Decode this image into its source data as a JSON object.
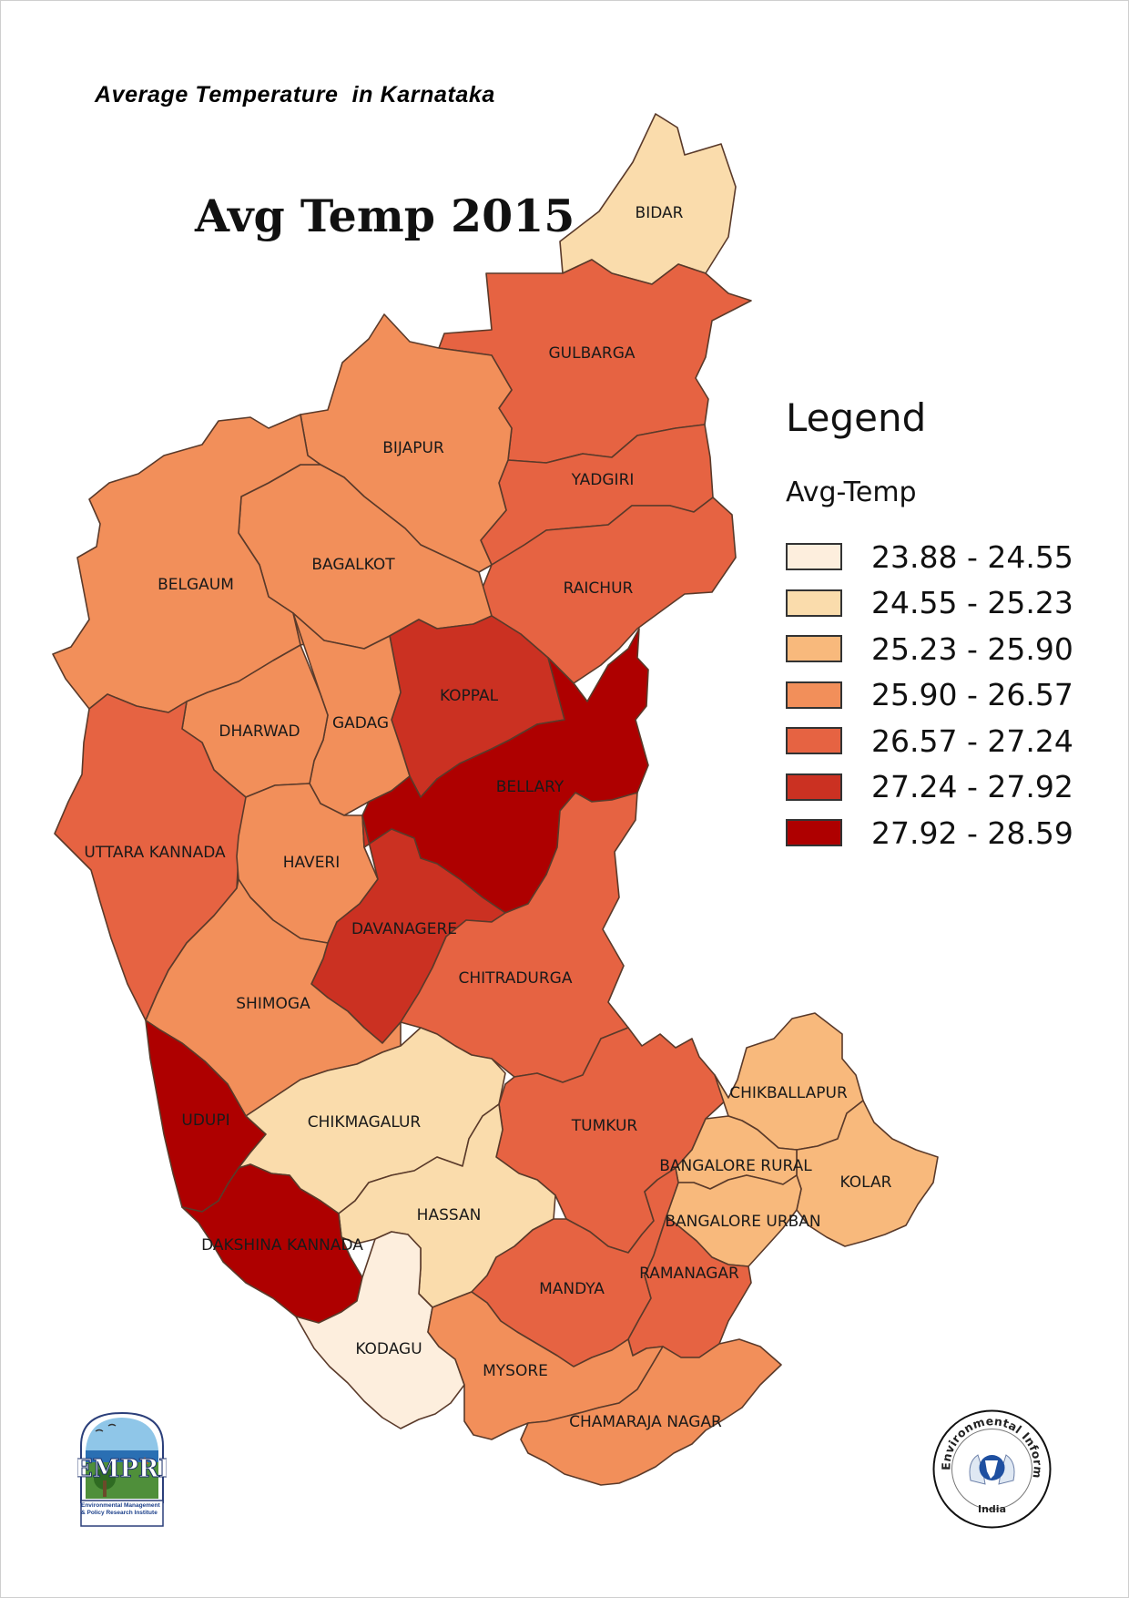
{
  "header": {
    "title": "Average Temperature  in Karnataka",
    "map_title": "Avg Temp 2015"
  },
  "legend": {
    "title": "Legend",
    "subtitle": "Avg-Temp",
    "classes": [
      {
        "label": "23.88 - 24.55",
        "color": "#fdeedd"
      },
      {
        "label": "24.55 - 25.23",
        "color": "#fadcac"
      },
      {
        "label": "25.23 - 25.90",
        "color": "#f8b97c"
      },
      {
        "label": "25.90 - 26.57",
        "color": "#f28f5a"
      },
      {
        "label": "26.57 - 27.24",
        "color": "#e66342"
      },
      {
        "label": "27.24 - 27.92",
        "color": "#cb3122"
      },
      {
        "label": "27.92 - 28.59",
        "color": "#ae0000"
      }
    ]
  },
  "districts": [
    {
      "name": "BIDAR",
      "class": 1
    },
    {
      "name": "GULBARGA",
      "class": 4
    },
    {
      "name": "YADGIRI",
      "class": 4
    },
    {
      "name": "BIJAPUR",
      "class": 3
    },
    {
      "name": "RAICHUR",
      "class": 4
    },
    {
      "name": "BAGALKOT",
      "class": 3
    },
    {
      "name": "BELGAUM",
      "class": 3
    },
    {
      "name": "KOPPAL",
      "class": 5
    },
    {
      "name": "GADAG",
      "class": 3
    },
    {
      "name": "DHARWAD",
      "class": 3
    },
    {
      "name": "BELLARY",
      "class": 6
    },
    {
      "name": "UTTARA KANNADA",
      "class": 4
    },
    {
      "name": "HAVERI",
      "class": 3
    },
    {
      "name": "DAVANAGERE",
      "class": 5
    },
    {
      "name": "CHITRADURGA",
      "class": 4
    },
    {
      "name": "SHIMOGA",
      "class": 3
    },
    {
      "name": "UDUPI",
      "class": 6
    },
    {
      "name": "CHIKMAGALUR",
      "class": 1
    },
    {
      "name": "TUMKUR",
      "class": 4
    },
    {
      "name": "CHIKBALLAPUR",
      "class": 2
    },
    {
      "name": "KOLAR",
      "class": 2
    },
    {
      "name": "BANGALORE RURAL",
      "class": 2
    },
    {
      "name": "BANGALORE URBAN",
      "class": 2
    },
    {
      "name": "HASSAN",
      "class": 1
    },
    {
      "name": "DAKSHINA KANNADA",
      "class": 6
    },
    {
      "name": "MANDYA",
      "class": 4
    },
    {
      "name": "RAMANAGAR",
      "class": 4
    },
    {
      "name": "KODAGU",
      "class": 0
    },
    {
      "name": "MYSORE",
      "class": 3
    },
    {
      "name": "CHAMARAJA NAGAR",
      "class": 3
    }
  ],
  "logos": {
    "left": {
      "text": "EMPRI",
      "caption": "Environmental Management & Policy Research Institute"
    },
    "right": {
      "ring_text": "Environmental Information System",
      "center_text": "India"
    }
  }
}
